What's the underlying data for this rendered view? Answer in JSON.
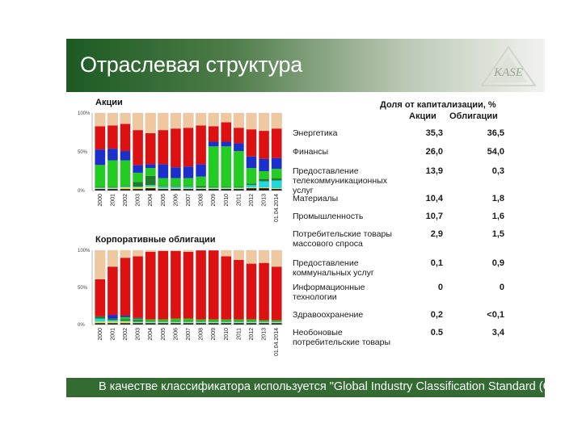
{
  "slide": {
    "title": "Отраслевая структура",
    "logo_text": "KASE",
    "footer": "В качестве классификатора используется \"Global Industry Classification Standard (GICS)®\""
  },
  "colors": {
    "header_dark": "#1c5a22",
    "footer": "#346b33",
    "energy": "#22cc22",
    "finance": "#dd1111",
    "telecom": "#1a2fcc",
    "materials": "#f0c8a0",
    "industry": "#1f7a2a",
    "consumer": "#22d8e0",
    "utilities": "#f0e040",
    "health": "#7a7a7a",
    "other": "#101010"
  },
  "table": {
    "header": "Доля от капитализации, %",
    "col_stocks": "Акции",
    "col_bonds": "Облигации",
    "rows": [
      {
        "name": "Энергетика",
        "stocks": "35,3",
        "bonds": "36,5"
      },
      {
        "name": "Финансы",
        "stocks": "26,0",
        "bonds": "54,0"
      },
      {
        "name": "Предоставление телекоммуникационных услуг",
        "stocks": "13,9",
        "bonds": "0,3"
      },
      {
        "name": "Материалы",
        "stocks": "10,4",
        "bonds": "1,8"
      },
      {
        "name": "Промышленность",
        "stocks": "10,7",
        "bonds": "1,6"
      },
      {
        "name": "Потребительские товары массового спроса",
        "stocks": "2,9",
        "bonds": "1,5"
      },
      {
        "name": "Предоставление коммунальных услуг",
        "stocks": "0,1",
        "bonds": "0,9"
      },
      {
        "name": "Информационные технологии",
        "stocks": "0",
        "bonds": "0"
      },
      {
        "name": "Здравоохранение",
        "stocks": "0,2",
        "bonds": "<0,1"
      },
      {
        "name": "Необоновые потребительские товары",
        "stocks": "0.5",
        "bonds": "3,4"
      }
    ]
  },
  "chart_data": [
    {
      "type": "bar",
      "stacked": true,
      "title": "Акции",
      "categories": [
        "2000",
        "2001",
        "2002",
        "2003",
        "2004",
        "2005",
        "2006",
        "2007",
        "2008",
        "2009",
        "2010",
        "2011",
        "2012",
        "2013",
        "01.04.2014"
      ],
      "yticks": [
        "0%",
        "50%",
        "100%"
      ],
      "ylim": [
        0,
        100
      ],
      "series": [
        {
          "key": "other",
          "values": [
            2,
            2,
            2,
            2,
            3,
            2,
            2,
            2,
            2,
            2,
            2,
            2,
            3,
            3,
            2
          ]
        },
        {
          "key": "utilities",
          "values": [
            1,
            1,
            2,
            2,
            2,
            1,
            1,
            1,
            1,
            1,
            1,
            1,
            1,
            1,
            1
          ]
        },
        {
          "key": "consumer",
          "values": [
            1,
            1,
            1,
            1,
            2,
            2,
            2,
            2,
            1,
            1,
            1,
            1,
            3,
            8,
            10
          ]
        },
        {
          "key": "industry",
          "values": [
            1,
            1,
            1,
            6,
            12,
            1,
            1,
            1,
            2,
            1,
            1,
            1,
            2,
            3,
            3
          ]
        },
        {
          "key": "energy",
          "values": [
            28,
            34,
            33,
            12,
            10,
            10,
            10,
            10,
            12,
            52,
            52,
            46,
            20,
            10,
            12
          ]
        },
        {
          "key": "telecom",
          "values": [
            20,
            15,
            12,
            10,
            5,
            18,
            14,
            15,
            16,
            6,
            6,
            10,
            15,
            16,
            14
          ]
        },
        {
          "key": "finance",
          "values": [
            30,
            30,
            35,
            45,
            40,
            44,
            50,
            50,
            50,
            20,
            25,
            20,
            35,
            36,
            38
          ]
        },
        {
          "key": "materials",
          "values": [
            17,
            16,
            14,
            22,
            26,
            22,
            20,
            19,
            16,
            17,
            12,
            19,
            21,
            23,
            20
          ]
        }
      ]
    },
    {
      "type": "bar",
      "stacked": true,
      "title": "Корпоративные облигации",
      "categories": [
        "2000",
        "2001",
        "2002",
        "2003",
        "2004",
        "2005",
        "2006",
        "2007",
        "2008",
        "2009",
        "2010",
        "2011",
        "2012",
        "2013",
        "01.04.2014"
      ],
      "yticks": [
        "0%",
        "50%",
        "100%"
      ],
      "ylim": [
        0,
        100
      ],
      "series": [
        {
          "key": "other",
          "values": [
            2,
            2,
            2,
            2,
            2,
            2,
            2,
            2,
            2,
            2,
            2,
            2,
            2,
            2,
            2
          ]
        },
        {
          "key": "utilities",
          "values": [
            2,
            2,
            2,
            1,
            1,
            1,
            1,
            1,
            1,
            1,
            1,
            1,
            1,
            1,
            1
          ]
        },
        {
          "key": "consumer",
          "values": [
            4,
            2,
            1,
            1,
            1,
            1,
            1,
            1,
            1,
            1,
            1,
            1,
            1,
            1,
            1
          ]
        },
        {
          "key": "industry",
          "values": [
            3,
            2,
            2,
            2,
            1,
            1,
            1,
            1,
            1,
            1,
            1,
            1,
            1,
            1,
            1
          ]
        },
        {
          "key": "energy",
          "values": [
            0,
            0,
            3,
            2,
            2,
            2,
            3,
            3,
            2,
            2,
            2,
            2,
            2,
            1,
            1
          ]
        },
        {
          "key": "telecom",
          "values": [
            0,
            5,
            2,
            1,
            0,
            0,
            0,
            0,
            0,
            0,
            0,
            0,
            0,
            0,
            0
          ]
        },
        {
          "key": "finance",
          "values": [
            50,
            65,
            78,
            83,
            91,
            92,
            91,
            90,
            93,
            93,
            85,
            80,
            75,
            77,
            72
          ]
        },
        {
          "key": "materials",
          "values": [
            39,
            22,
            10,
            8,
            2,
            1,
            1,
            2,
            0,
            0,
            8,
            13,
            18,
            17,
            22
          ]
        }
      ]
    }
  ]
}
